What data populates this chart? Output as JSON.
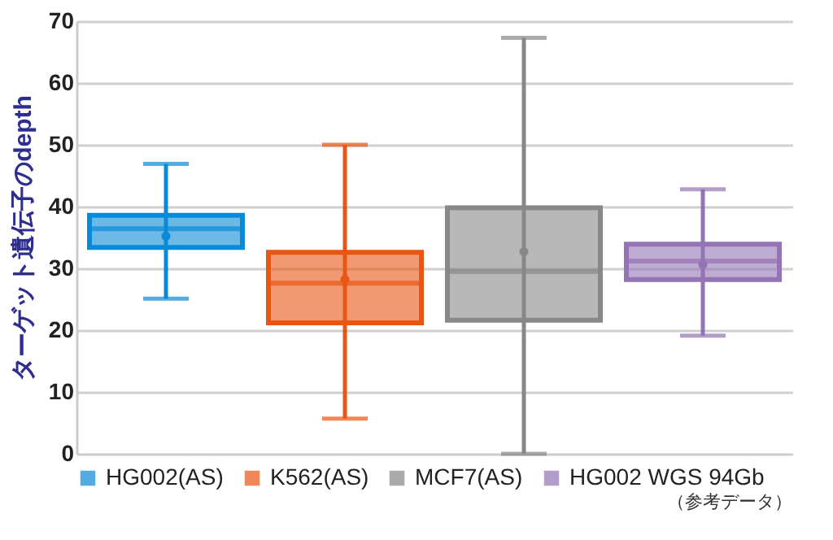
{
  "chart_data": {
    "type": "box",
    "ylabel": "ターゲット遺伝子のdepth",
    "categories": [
      null,
      null,
      null,
      null
    ],
    "ylim": [
      0,
      70
    ],
    "yticks": [
      0,
      10,
      20,
      30,
      40,
      50,
      60,
      70
    ],
    "grid": "y",
    "legend": "bottom",
    "tick_labels": "y",
    "annotations": [
      "（参考データ）"
    ],
    "series": [
      {
        "name": "HG002(AS)",
        "color": "#0a8ad6",
        "boxes": [
          {
            "low": 25.1,
            "q1": 33.4,
            "median": 36.4,
            "q3": 38.6,
            "high": 46.9,
            "mean": 35.2
          },
          null,
          null,
          null
        ]
      },
      {
        "name": "K562(AS)",
        "color": "#e95513",
        "boxes": [
          null,
          {
            "low": 5.7,
            "q1": 21.2,
            "median": 27.6,
            "q3": 32.6,
            "high": 50,
            "mean": 28.2
          },
          null,
          null
        ]
      },
      {
        "name": "MCF7(AS)",
        "color": "#888888",
        "boxes": [
          null,
          null,
          {
            "low": 0,
            "q1": 21.6,
            "median": 29.5,
            "q3": 39.8,
            "high": 67.3,
            "mean": 32.7
          },
          null
        ]
      },
      {
        "name": "HG002 WGS 94Gb",
        "color": "#9474b4",
        "boxes": [
          null,
          null,
          null,
          {
            "low": 19.1,
            "q1": 28.2,
            "median": 31.2,
            "q3": 33.9,
            "high": 42.8,
            "mean": 30.6
          }
        ]
      }
    ]
  }
}
